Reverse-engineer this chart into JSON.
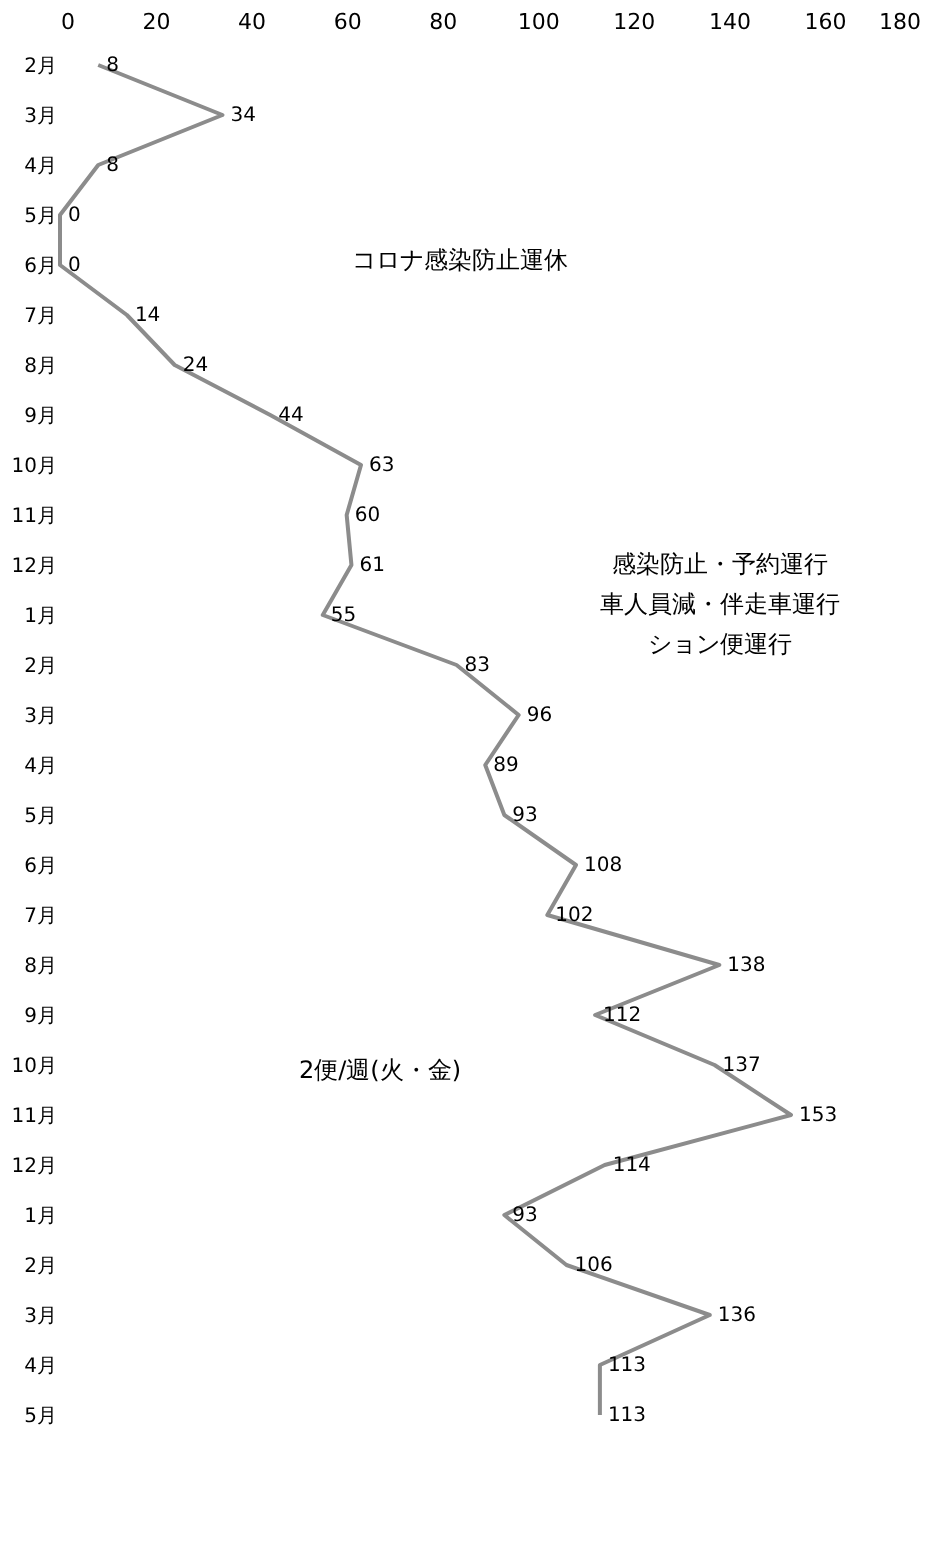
{
  "chart_data": {
    "type": "line",
    "categories": [
      "2月",
      "3月",
      "4月",
      "5月",
      "6月",
      "7月",
      "8月",
      "9月",
      "10月",
      "11月",
      "12月",
      "1月",
      "2月",
      "3月",
      "4月",
      "5月",
      "6月",
      "7月",
      "8月",
      "9月",
      "10月",
      "11月",
      "12月",
      "1月",
      "2月",
      "3月",
      "4月",
      "5月"
    ],
    "series": [
      {
        "color": "#8c8c8c",
        "values": [
          8,
          34,
          8,
          0,
          0,
          14,
          24,
          44,
          63,
          60,
          61,
          55,
          83,
          96,
          89,
          93,
          108,
          102,
          138,
          112,
          137,
          153,
          114,
          93,
          106,
          136,
          113,
          113
        ]
      }
    ],
    "orientation": "horizontal",
    "xlim": [
      0,
      180
    ],
    "xticks": [
      0,
      20,
      40,
      60,
      80,
      100,
      120,
      140,
      160,
      180
    ],
    "data_labels": true,
    "grid": false,
    "marker": "none",
    "line_style": "solid",
    "annotations": [
      "コロナ感染防止運休",
      "感染防止・予約運行",
      "車人員減・伴走車運行",
      "ション便運行",
      "2便/週(火・金)"
    ]
  }
}
